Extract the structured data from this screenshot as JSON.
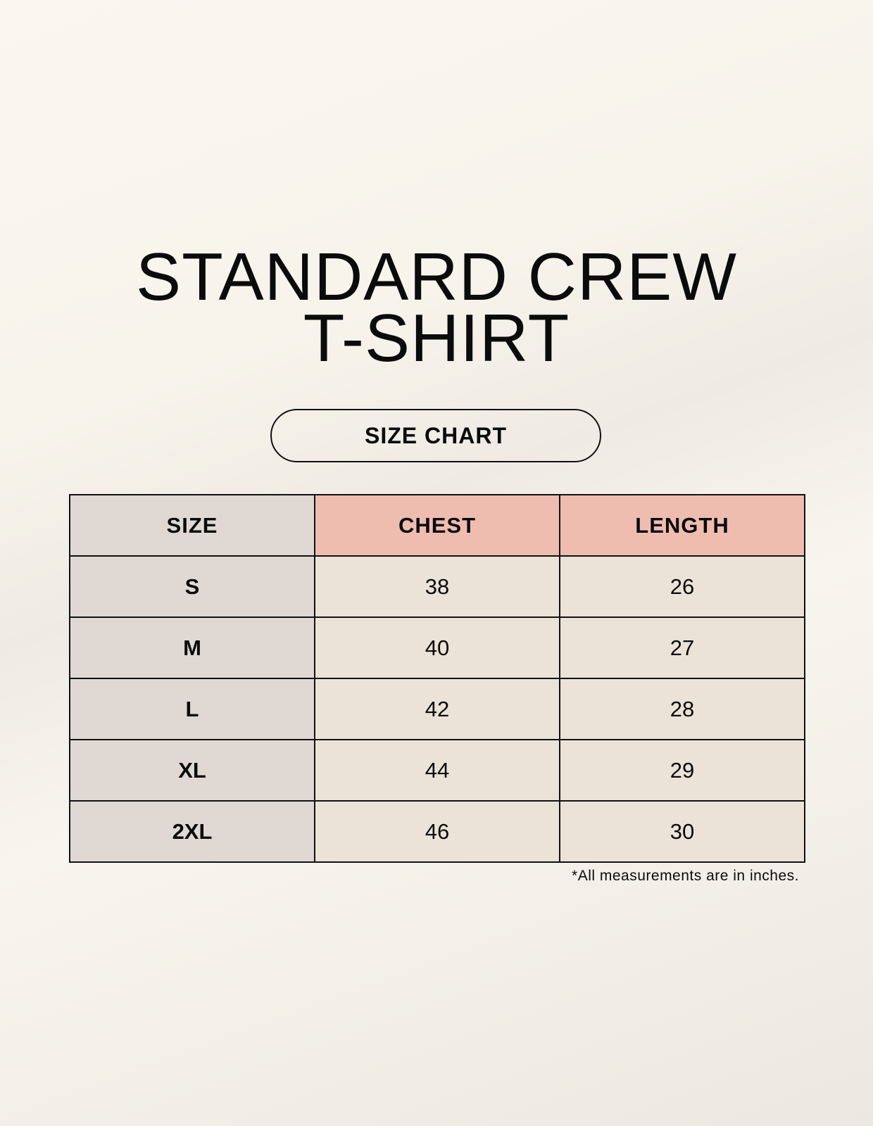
{
  "title": {
    "line1": "STANDARD CREW",
    "line2": "T-SHIRT"
  },
  "badge": "SIZE CHART",
  "table": {
    "headers": [
      "SIZE",
      "CHEST",
      "LENGTH"
    ],
    "rows": [
      [
        "S",
        "38",
        "26"
      ],
      [
        "M",
        "40",
        "27"
      ],
      [
        "L",
        "42",
        "28"
      ],
      [
        "XL",
        "44",
        "29"
      ],
      [
        "2XL",
        "46",
        "30"
      ]
    ]
  },
  "footnote": "*All measurements are in inches.",
  "colors": {
    "size_column": "#e0d9d3",
    "header_accent": "#eebdb0",
    "value_cells": "#ebe3d8"
  }
}
